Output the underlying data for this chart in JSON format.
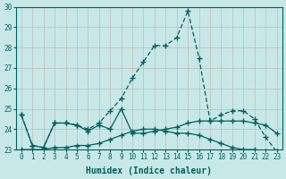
{
  "xlabel": "Humidex (Indice chaleur)",
  "ylabel": "",
  "background_color": "#c8e8e8",
  "grid_color": "#c0b8b8",
  "line_color": "#006060",
  "xlim": [
    -0.5,
    23.5
  ],
  "ylim": [
    23,
    30
  ],
  "yticks": [
    23,
    24,
    25,
    26,
    27,
    28,
    29,
    30
  ],
  "xticks": [
    0,
    1,
    2,
    3,
    4,
    5,
    6,
    7,
    8,
    9,
    10,
    11,
    12,
    13,
    14,
    15,
    16,
    17,
    18,
    19,
    20,
    21,
    22,
    23
  ],
  "xtick_labels": [
    "0",
    "1",
    "2",
    "3",
    "4",
    "5",
    "6",
    "7",
    "8",
    "9",
    "10",
    "11",
    "12",
    "13",
    "14",
    "15",
    "16",
    "17",
    "18",
    "19",
    "20",
    "21",
    "22",
    "23"
  ],
  "series1_x": [
    0,
    1,
    2,
    3,
    4,
    5,
    6,
    7,
    8,
    9,
    10,
    11,
    12,
    13,
    14,
    15,
    16,
    17,
    18,
    19,
    20,
    21,
    22,
    23
  ],
  "series1_y": [
    24.7,
    23.2,
    23.1,
    24.3,
    24.3,
    24.2,
    23.9,
    24.2,
    24.0,
    25.0,
    23.8,
    23.8,
    23.9,
    24.0,
    24.1,
    24.3,
    24.4,
    24.4,
    24.4,
    24.4,
    24.4,
    24.3,
    24.2,
    23.8
  ],
  "series2_x": [
    0,
    1,
    2,
    3,
    4,
    5,
    6,
    7,
    8,
    9,
    10,
    11,
    12,
    13,
    14,
    15,
    16,
    17,
    18,
    19,
    20,
    21,
    22,
    23
  ],
  "series2_y": [
    24.7,
    23.2,
    23.1,
    24.3,
    24.3,
    24.2,
    24.0,
    24.3,
    24.9,
    25.5,
    26.5,
    27.3,
    28.1,
    28.1,
    28.5,
    29.8,
    27.5,
    24.4,
    24.7,
    24.9,
    24.9,
    24.5,
    23.6,
    22.9
  ],
  "series3_x": [
    0,
    1,
    2,
    3,
    4,
    5,
    6,
    7,
    8,
    9,
    10,
    11,
    12,
    13,
    14,
    15,
    16,
    17,
    18,
    19,
    20,
    21,
    22,
    23
  ],
  "series3_y": [
    23.0,
    23.0,
    23.0,
    23.1,
    23.1,
    23.2,
    23.2,
    23.3,
    23.5,
    23.7,
    23.9,
    24.0,
    24.0,
    23.9,
    23.8,
    23.8,
    23.7,
    23.5,
    23.3,
    23.1,
    23.0,
    23.0,
    22.9,
    22.8
  ],
  "tick_fontsize": 5.5,
  "xlabel_fontsize": 7
}
